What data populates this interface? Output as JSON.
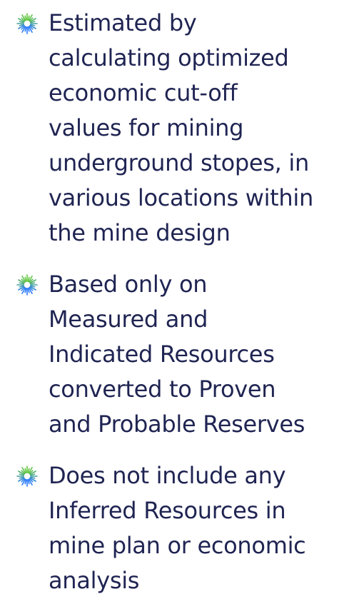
{
  "bullets": [
    {
      "lines": [
        "Estimated by",
        "calculating optimized",
        "economic cut-off",
        "values for mining",
        "underground stopes, in",
        "various locations within",
        "the mine design"
      ]
    },
    {
      "lines": [
        "Based only on",
        "Measured and",
        "Indicated Resources",
        "converted to Proven",
        "and Probable Reserves"
      ]
    },
    {
      "lines": [
        "Does not include any",
        "Inferred Resources in",
        "mine plan or economic",
        "analysis"
      ]
    }
  ]
}
